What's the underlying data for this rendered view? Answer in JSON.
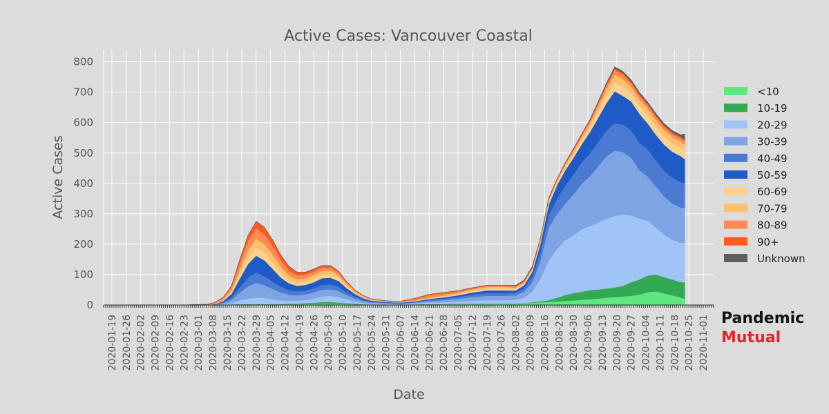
{
  "chart_data": {
    "type": "area",
    "stacked": true,
    "title": "Active Cases: Vancouver Coastal",
    "xlabel": "Date",
    "ylabel": "Active Cases",
    "ylim": [
      0,
      840
    ],
    "yticks": [
      0,
      100,
      200,
      300,
      400,
      500,
      600,
      700,
      800
    ],
    "xlim": [
      "2020-01-15",
      "2020-11-06"
    ],
    "xticks": [
      "2020-01-19",
      "2020-01-26",
      "2020-02-02",
      "2020-02-09",
      "2020-02-16",
      "2020-02-23",
      "2020-03-01",
      "2020-03-08",
      "2020-03-15",
      "2020-03-22",
      "2020-03-29",
      "2020-04-05",
      "2020-04-12",
      "2020-04-19",
      "2020-04-26",
      "2020-05-03",
      "2020-05-10",
      "2020-05-17",
      "2020-05-24",
      "2020-05-31",
      "2020-06-07",
      "2020-06-14",
      "2020-06-21",
      "2020-06-28",
      "2020-07-05",
      "2020-07-12",
      "2020-07-19",
      "2020-07-26",
      "2020-08-02",
      "2020-08-09",
      "2020-08-16",
      "2020-08-23",
      "2020-08-30",
      "2020-09-06",
      "2020-09-13",
      "2020-09-20",
      "2020-09-27",
      "2020-10-04",
      "2020-10-11",
      "2020-10-18",
      "2020-10-25",
      "2020-11-01"
    ],
    "grid": true,
    "legend": "right",
    "x": [
      "2020-01-19",
      "2020-01-26",
      "2020-02-02",
      "2020-02-09",
      "2020-02-16",
      "2020-02-23",
      "2020-03-01",
      "2020-03-05",
      "2020-03-09",
      "2020-03-13",
      "2020-03-17",
      "2020-03-21",
      "2020-03-25",
      "2020-03-29",
      "2020-04-02",
      "2020-04-06",
      "2020-04-10",
      "2020-04-14",
      "2020-04-18",
      "2020-04-22",
      "2020-04-26",
      "2020-04-30",
      "2020-05-04",
      "2020-05-08",
      "2020-05-12",
      "2020-05-16",
      "2020-05-20",
      "2020-05-24",
      "2020-05-31",
      "2020-06-07",
      "2020-06-14",
      "2020-06-21",
      "2020-06-28",
      "2020-07-05",
      "2020-07-12",
      "2020-07-19",
      "2020-07-26",
      "2020-08-02",
      "2020-08-06",
      "2020-08-10",
      "2020-08-14",
      "2020-08-18",
      "2020-08-22",
      "2020-08-26",
      "2020-08-30",
      "2020-09-03",
      "2020-09-07",
      "2020-09-11",
      "2020-09-15",
      "2020-09-19",
      "2020-09-23",
      "2020-09-27",
      "2020-10-01",
      "2020-10-05",
      "2020-10-09",
      "2020-10-13",
      "2020-10-17",
      "2020-10-21",
      "2020-10-23"
    ],
    "series": [
      {
        "name": "<10",
        "color": "#5ee87f",
        "values": [
          0,
          0,
          0,
          0,
          0,
          0,
          0,
          0,
          0,
          1,
          1,
          2,
          2,
          2,
          2,
          2,
          2,
          2,
          2,
          3,
          3,
          4,
          4,
          4,
          3,
          2,
          1,
          1,
          1,
          0,
          1,
          2,
          2,
          3,
          3,
          3,
          3,
          4,
          5,
          7,
          9,
          10,
          12,
          13,
          15,
          17,
          19,
          21,
          24,
          26,
          28,
          30,
          34,
          42,
          45,
          38,
          32,
          25,
          20
        ]
      },
      {
        "name": "10-19",
        "color": "#35a853",
        "values": [
          0,
          0,
          0,
          0,
          0,
          0,
          0,
          0,
          0,
          0,
          1,
          1,
          1,
          1,
          1,
          1,
          1,
          2,
          2,
          3,
          4,
          6,
          6,
          4,
          3,
          2,
          1,
          1,
          1,
          0,
          1,
          1,
          1,
          1,
          1,
          1,
          1,
          1,
          1,
          2,
          3,
          6,
          12,
          20,
          24,
          27,
          30,
          30,
          30,
          32,
          35,
          45,
          50,
          55,
          55,
          54,
          52,
          50,
          55
        ]
      },
      {
        "name": "20-29",
        "color": "#9fc4f5",
        "values": [
          0,
          0,
          0,
          0,
          0,
          0,
          0,
          0,
          1,
          2,
          5,
          12,
          18,
          22,
          20,
          16,
          12,
          10,
          10,
          11,
          14,
          18,
          20,
          18,
          12,
          8,
          5,
          3,
          2,
          2,
          3,
          5,
          6,
          8,
          10,
          12,
          12,
          12,
          18,
          35,
          75,
          130,
          160,
          180,
          190,
          205,
          210,
          220,
          230,
          235,
          235,
          220,
          200,
          180,
          155,
          140,
          130,
          130,
          130
        ]
      },
      {
        "name": "30-39",
        "color": "#7ea4e3",
        "values": [
          0,
          0,
          0,
          0,
          0,
          0,
          0,
          0,
          1,
          4,
          10,
          25,
          40,
          48,
          42,
          34,
          26,
          20,
          18,
          18,
          20,
          22,
          22,
          20,
          14,
          9,
          6,
          3,
          2,
          2,
          3,
          5,
          7,
          9,
          12,
          14,
          14,
          14,
          20,
          30,
          60,
          110,
          115,
          120,
          135,
          150,
          165,
          185,
          205,
          215,
          205,
          190,
          160,
          145,
          135,
          125,
          120,
          115,
          115
        ]
      },
      {
        "name": "40-49",
        "color": "#4b7ad2",
        "values": [
          0,
          0,
          0,
          0,
          0,
          0,
          0,
          0,
          0,
          2,
          7,
          18,
          28,
          34,
          30,
          24,
          19,
          15,
          13,
          13,
          14,
          16,
          16,
          14,
          10,
          7,
          4,
          3,
          2,
          2,
          2,
          4,
          5,
          6,
          8,
          9,
          9,
          9,
          11,
          20,
          30,
          40,
          50,
          60,
          65,
          70,
          75,
          80,
          85,
          90,
          90,
          90,
          90,
          90,
          85,
          85,
          85,
          85,
          80
        ]
      },
      {
        "name": "50-59",
        "color": "#1e5bc6",
        "values": [
          0,
          0,
          0,
          0,
          0,
          0,
          0,
          0,
          1,
          4,
          12,
          28,
          45,
          55,
          52,
          42,
          30,
          22,
          18,
          18,
          20,
          22,
          22,
          19,
          13,
          8,
          5,
          3,
          2,
          2,
          2,
          3,
          4,
          5,
          7,
          9,
          9,
          8,
          10,
          15,
          25,
          35,
          45,
          50,
          55,
          60,
          70,
          80,
          90,
          105,
          95,
          95,
          95,
          85,
          85,
          85,
          85,
          85,
          80
        ]
      },
      {
        "name": "60-69",
        "color": "#f9d28f",
        "values": [
          0,
          0,
          0,
          0,
          0,
          0,
          0,
          0,
          1,
          2,
          6,
          15,
          23,
          28,
          26,
          23,
          17,
          12,
          10,
          10,
          12,
          12,
          12,
          10,
          6,
          4,
          3,
          2,
          1,
          1,
          1,
          2,
          3,
          4,
          5,
          6,
          6,
          5,
          5,
          6,
          8,
          10,
          10,
          12,
          13,
          14,
          16,
          20,
          26,
          30,
          30,
          28,
          28,
          28,
          28,
          28,
          28,
          28,
          27
        ]
      },
      {
        "name": "70-79",
        "color": "#f9bf6a",
        "values": [
          0,
          0,
          0,
          0,
          0,
          0,
          0,
          0,
          1,
          3,
          7,
          16,
          24,
          28,
          27,
          24,
          19,
          13,
          11,
          11,
          12,
          12,
          12,
          10,
          7,
          4,
          3,
          2,
          1,
          1,
          1,
          2,
          3,
          4,
          5,
          6,
          6,
          5,
          4,
          4,
          4,
          4,
          5,
          6,
          8,
          10,
          12,
          16,
          20,
          25,
          25,
          20,
          20,
          20,
          20,
          20,
          20,
          20,
          20
        ]
      },
      {
        "name": "80-89",
        "color": "#ff8a55",
        "values": [
          0,
          0,
          0,
          0,
          0,
          0,
          1,
          1,
          2,
          4,
          8,
          18,
          28,
          35,
          33,
          28,
          22,
          17,
          13,
          12,
          12,
          11,
          10,
          8,
          6,
          4,
          2,
          1,
          1,
          1,
          6,
          8,
          7,
          5,
          4,
          3,
          3,
          3,
          3,
          3,
          3,
          3,
          3,
          4,
          5,
          6,
          8,
          10,
          12,
          15,
          15,
          12,
          12,
          12,
          11,
          11,
          11,
          11,
          11
        ]
      },
      {
        "name": "90+",
        "color": "#ff5a1f",
        "values": [
          0,
          0,
          0,
          0,
          0,
          0,
          1,
          1,
          2,
          3,
          6,
          12,
          18,
          22,
          22,
          20,
          16,
          13,
          10,
          8,
          7,
          6,
          5,
          4,
          3,
          2,
          1,
          1,
          1,
          1,
          2,
          3,
          3,
          2,
          2,
          2,
          2,
          2,
          2,
          2,
          2,
          2,
          2,
          2,
          3,
          3,
          3,
          4,
          4,
          5,
          5,
          5,
          5,
          5,
          5,
          5,
          5,
          5,
          5
        ]
      },
      {
        "name": "Unknown",
        "color": "#5e5e5e",
        "values": [
          0,
          0,
          0,
          0,
          0,
          0,
          0,
          0,
          0,
          0,
          0,
          1,
          1,
          1,
          1,
          1,
          1,
          1,
          1,
          1,
          1,
          1,
          1,
          1,
          0,
          0,
          0,
          0,
          0,
          0,
          0,
          0,
          0,
          0,
          0,
          0,
          0,
          2,
          3,
          4,
          3,
          3,
          2,
          2,
          2,
          2,
          3,
          4,
          5,
          6,
          6,
          6,
          6,
          6,
          6,
          6,
          6,
          6,
          20
        ]
      }
    ]
  },
  "logo": {
    "line1": "Pandemic",
    "line2": "Mutual"
  }
}
